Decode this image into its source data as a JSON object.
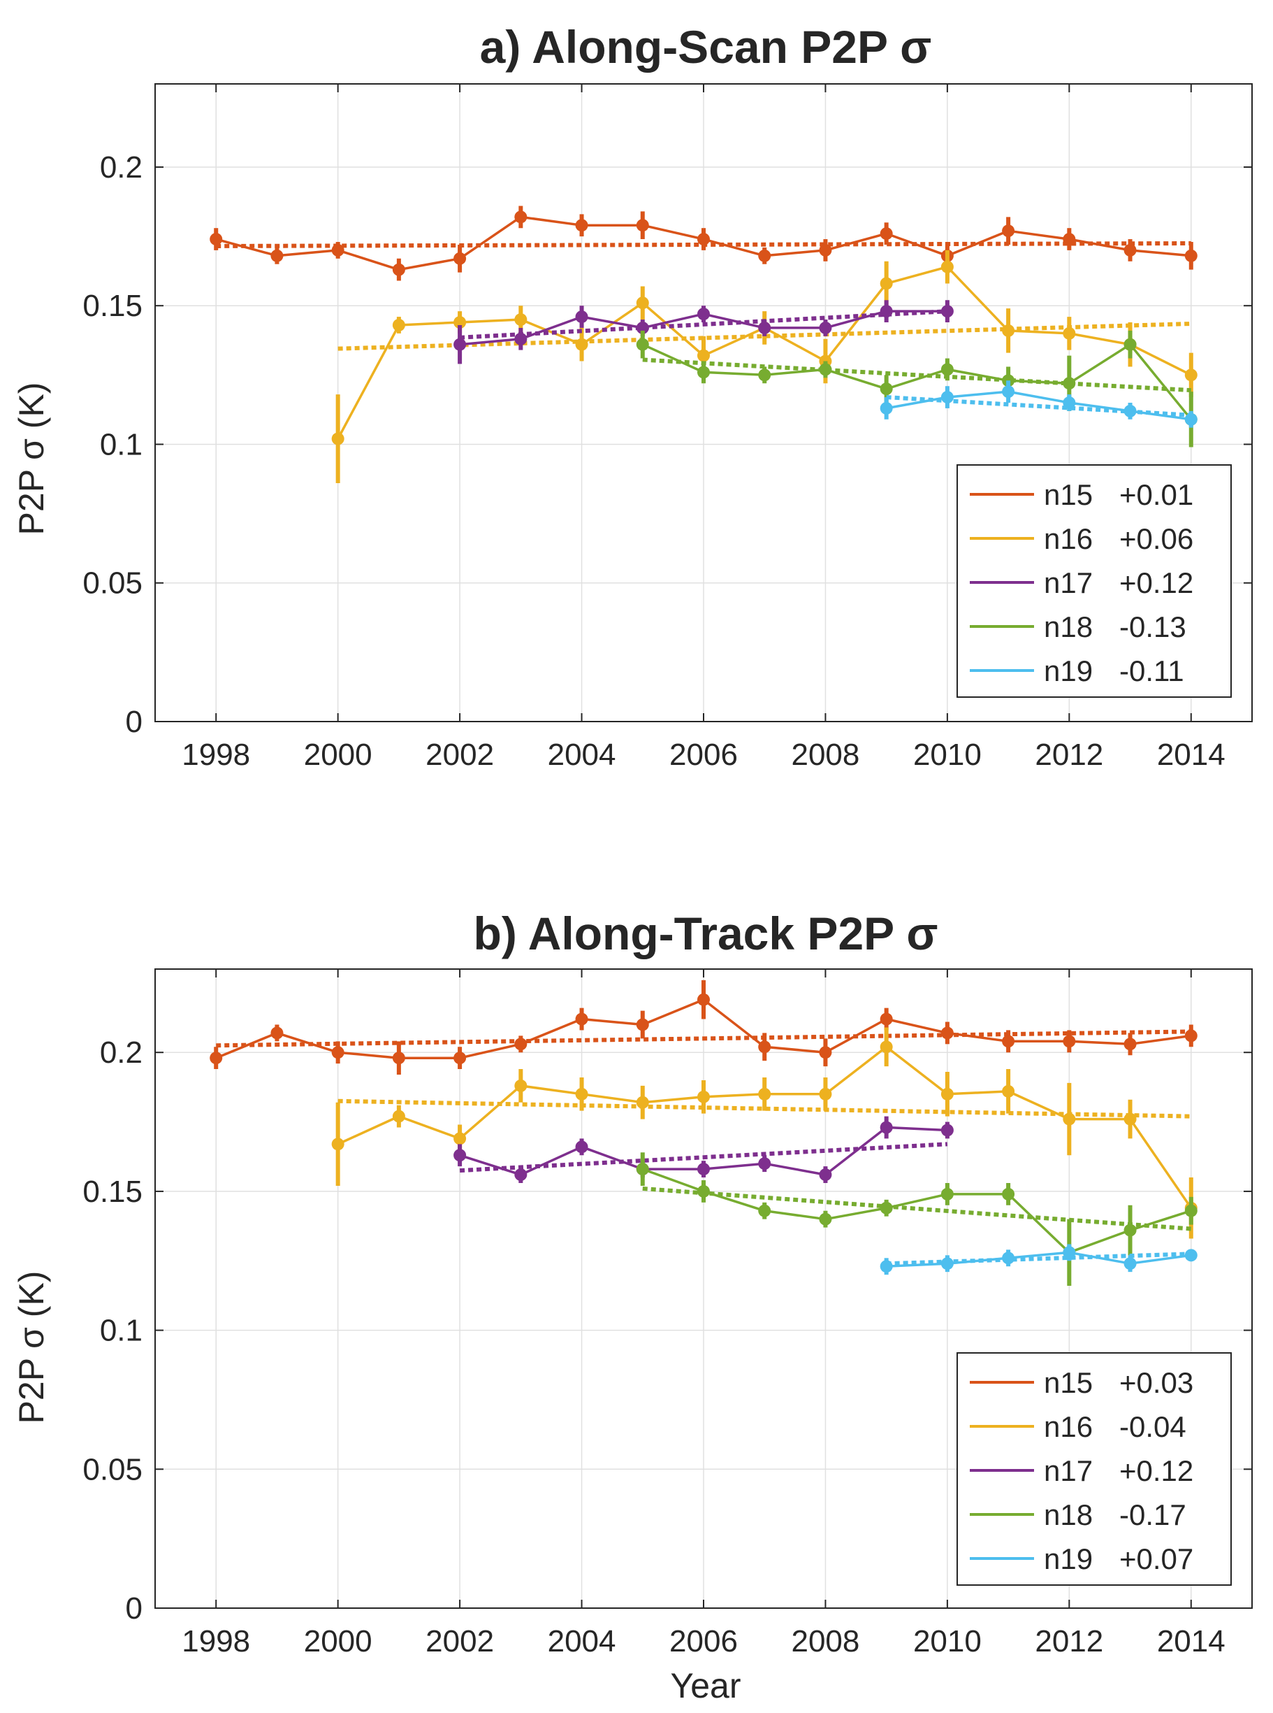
{
  "chart_data": [
    {
      "type": "line",
      "title": "a) Along-Scan P2P σ",
      "xlabel": "",
      "ylabel": "P2P σ (K)",
      "xlim": [
        1997,
        2015
      ],
      "ylim": [
        0,
        0.23
      ],
      "xticks": [
        1998,
        2000,
        2002,
        2004,
        2006,
        2008,
        2010,
        2012,
        2014
      ],
      "xtick_labels": [
        "1998",
        "2000",
        "2002",
        "2004",
        "2006",
        "2008",
        "2010",
        "2012",
        "2014"
      ],
      "yticks": [
        0,
        0.05,
        0.1,
        0.15,
        0.2
      ],
      "ytick_labels": [
        "0",
        "0.05",
        "0.1",
        "0.15",
        "0.2"
      ],
      "grid": true,
      "legend_position": "bottom-right",
      "series": [
        {
          "name": "n15",
          "trend_label": "+0.01",
          "color": "#D95319",
          "x": [
            1998,
            1999,
            2000,
            2001,
            2002,
            2003,
            2004,
            2005,
            2006,
            2007,
            2008,
            2009,
            2010,
            2011,
            2012,
            2013,
            2014
          ],
          "y": [
            0.174,
            0.168,
            0.17,
            0.163,
            0.167,
            0.182,
            0.179,
            0.179,
            0.174,
            0.168,
            0.17,
            0.176,
            0.168,
            0.177,
            0.174,
            0.17,
            0.168
          ],
          "err": [
            0.004,
            0.003,
            0.003,
            0.004,
            0.005,
            0.004,
            0.004,
            0.005,
            0.004,
            0.003,
            0.004,
            0.004,
            0.005,
            0.005,
            0.004,
            0.004,
            0.005
          ],
          "trend": [
            [
              1998,
              0.1715
            ],
            [
              2014,
              0.1725
            ]
          ]
        },
        {
          "name": "n16",
          "trend_label": "+0.06",
          "color": "#EDB120",
          "x": [
            2000,
            2001,
            2002,
            2003,
            2004,
            2005,
            2006,
            2007,
            2008,
            2009,
            2010,
            2011,
            2012,
            2013,
            2014
          ],
          "y": [
            0.102,
            0.143,
            0.144,
            0.145,
            0.136,
            0.151,
            0.132,
            0.142,
            0.13,
            0.158,
            0.164,
            0.141,
            0.14,
            0.136,
            0.125
          ],
          "err": [
            0.016,
            0.003,
            0.004,
            0.005,
            0.006,
            0.006,
            0.007,
            0.006,
            0.008,
            0.008,
            0.006,
            0.008,
            0.006,
            0.008,
            0.008
          ],
          "trend": [
            [
              2000,
              0.1345
            ],
            [
              2014,
              0.1435
            ]
          ]
        },
        {
          "name": "n17",
          "trend_label": "+0.12",
          "color": "#7E2F8E",
          "x": [
            2002,
            2003,
            2004,
            2005,
            2006,
            2007,
            2008,
            2009,
            2010
          ],
          "y": [
            0.136,
            0.138,
            0.146,
            0.142,
            0.147,
            0.142,
            0.142,
            0.148,
            0.148
          ],
          "err": [
            0.007,
            0.004,
            0.004,
            0.003,
            0.003,
            0.003,
            0.003,
            0.004,
            0.004
          ],
          "trend": [
            [
              2002,
              0.1385
            ],
            [
              2010,
              0.148
            ]
          ]
        },
        {
          "name": "n18",
          "trend_label": "-0.13",
          "color": "#77AC30",
          "x": [
            2005,
            2006,
            2007,
            2008,
            2009,
            2010,
            2011,
            2012,
            2013,
            2014
          ],
          "y": [
            0.136,
            0.126,
            0.125,
            0.127,
            0.12,
            0.127,
            0.123,
            0.122,
            0.136,
            0.109
          ],
          "err": [
            0.005,
            0.004,
            0.003,
            0.003,
            0.005,
            0.004,
            0.005,
            0.01,
            0.005,
            0.01
          ],
          "trend": [
            [
              2005,
              0.1305
            ],
            [
              2014,
              0.1195
            ]
          ]
        },
        {
          "name": "n19",
          "trend_label": "-0.11",
          "color": "#4DBEEE",
          "x": [
            2009,
            2010,
            2011,
            2012,
            2013,
            2014
          ],
          "y": [
            0.113,
            0.117,
            0.119,
            0.115,
            0.112,
            0.109
          ],
          "err": [
            0.004,
            0.004,
            0.004,
            0.003,
            0.003,
            0.003
          ],
          "trend": [
            [
              2009,
              0.117
            ],
            [
              2014,
              0.1105
            ]
          ]
        }
      ]
    },
    {
      "type": "line",
      "title": "b) Along-Track P2P σ",
      "xlabel": "Year",
      "ylabel": "P2P σ (K)",
      "xlim": [
        1997,
        2015
      ],
      "ylim": [
        0,
        0.23
      ],
      "xticks": [
        1998,
        2000,
        2002,
        2004,
        2006,
        2008,
        2010,
        2012,
        2014
      ],
      "xtick_labels": [
        "1998",
        "2000",
        "2002",
        "2004",
        "2006",
        "2008",
        "2010",
        "2012",
        "2014"
      ],
      "yticks": [
        0,
        0.05,
        0.1,
        0.15,
        0.2
      ],
      "ytick_labels": [
        "0",
        "0.05",
        "0.1",
        "0.15",
        "0.2"
      ],
      "grid": true,
      "legend_position": "bottom-right",
      "series": [
        {
          "name": "n15",
          "trend_label": "+0.03",
          "color": "#D95319",
          "x": [
            1998,
            1999,
            2000,
            2001,
            2002,
            2003,
            2004,
            2005,
            2006,
            2007,
            2008,
            2009,
            2010,
            2011,
            2012,
            2013,
            2014
          ],
          "y": [
            0.198,
            0.207,
            0.2,
            0.198,
            0.198,
            0.203,
            0.212,
            0.21,
            0.219,
            0.202,
            0.2,
            0.212,
            0.207,
            0.204,
            0.204,
            0.203,
            0.206
          ],
          "err": [
            0.004,
            0.003,
            0.004,
            0.006,
            0.004,
            0.003,
            0.004,
            0.005,
            0.007,
            0.005,
            0.005,
            0.004,
            0.004,
            0.004,
            0.004,
            0.004,
            0.004
          ],
          "trend": [
            [
              1998,
              0.2025
            ],
            [
              2014,
              0.2075
            ]
          ]
        },
        {
          "name": "n16",
          "trend_label": "-0.04",
          "color": "#EDB120",
          "x": [
            2000,
            2001,
            2002,
            2003,
            2004,
            2005,
            2006,
            2007,
            2008,
            2009,
            2010,
            2011,
            2012,
            2013,
            2014
          ],
          "y": [
            0.167,
            0.177,
            0.169,
            0.188,
            0.185,
            0.182,
            0.184,
            0.185,
            0.185,
            0.202,
            0.185,
            0.186,
            0.176,
            0.176,
            0.144
          ],
          "err": [
            0.015,
            0.004,
            0.005,
            0.006,
            0.006,
            0.006,
            0.006,
            0.006,
            0.006,
            0.007,
            0.008,
            0.008,
            0.013,
            0.007,
            0.011
          ],
          "trend": [
            [
              2000,
              0.1825
            ],
            [
              2014,
              0.177
            ]
          ]
        },
        {
          "name": "n17",
          "trend_label": "+0.12",
          "color": "#7E2F8E",
          "x": [
            2002,
            2003,
            2004,
            2005,
            2006,
            2007,
            2008,
            2009,
            2010
          ],
          "y": [
            0.163,
            0.156,
            0.166,
            0.158,
            0.158,
            0.16,
            0.156,
            0.173,
            0.172
          ],
          "err": [
            0.004,
            0.003,
            0.003,
            0.003,
            0.003,
            0.003,
            0.003,
            0.004,
            0.003
          ],
          "trend": [
            [
              2002,
              0.1575
            ],
            [
              2010,
              0.167
            ]
          ]
        },
        {
          "name": "n18",
          "trend_label": "-0.17",
          "color": "#77AC30",
          "x": [
            2005,
            2006,
            2007,
            2008,
            2009,
            2010,
            2011,
            2012,
            2013,
            2014
          ],
          "y": [
            0.158,
            0.15,
            0.143,
            0.14,
            0.144,
            0.149,
            0.149,
            0.128,
            0.136,
            0.143
          ],
          "err": [
            0.006,
            0.004,
            0.003,
            0.003,
            0.003,
            0.004,
            0.004,
            0.012,
            0.009,
            0.005
          ],
          "trend": [
            [
              2005,
              0.151
            ],
            [
              2014,
              0.1365
            ]
          ]
        },
        {
          "name": "n19",
          "trend_label": "+0.07",
          "color": "#4DBEEE",
          "x": [
            2009,
            2010,
            2011,
            2012,
            2013,
            2014
          ],
          "y": [
            0.123,
            0.124,
            0.126,
            0.128,
            0.124,
            0.127
          ],
          "err": [
            0.003,
            0.003,
            0.003,
            0.003,
            0.003,
            0.002
          ],
          "trend": [
            [
              2009,
              0.124
            ],
            [
              2014,
              0.1275
            ]
          ]
        }
      ]
    }
  ]
}
